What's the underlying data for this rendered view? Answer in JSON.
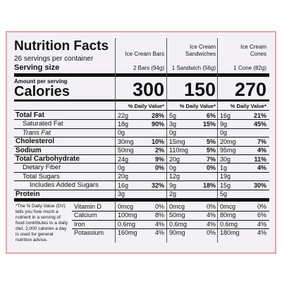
{
  "header": {
    "title": "Nutrition Facts",
    "servings": "26 servings per container",
    "serving_size_label": "Serving size"
  },
  "columns": [
    {
      "name": "Ice Cream Bars",
      "serving_size": "2 Bars (94g)",
      "calories": 300
    },
    {
      "name": "Ice Cream Sandwiches",
      "serving_size": "1 Sandwich (56g)",
      "calories": 150
    },
    {
      "name": "Ice Cream Cones",
      "serving_size": "1 Cone (82g)",
      "calories": 270
    }
  ],
  "amount_per_serving": "Amount per serving",
  "calories_label": "Calories",
  "daily_value_header": "% Daily Value*",
  "nutrients": [
    {
      "label": "Total Fat",
      "bold": true,
      "values": [
        {
          "amount": "22g",
          "dv": "28%"
        },
        {
          "amount": "5g",
          "dv": "6%"
        },
        {
          "amount": "16g",
          "dv": "21%"
        }
      ]
    },
    {
      "label": "Saturated Fat",
      "indent": 1,
      "values": [
        {
          "amount": "18g",
          "dv": "90%"
        },
        {
          "amount": "3g",
          "dv": "15%"
        },
        {
          "amount": "9g",
          "dv": "45%"
        }
      ]
    },
    {
      "label": "Trans Fat",
      "indent": 1,
      "italic": true,
      "values": [
        {
          "amount": "0g"
        },
        {
          "amount": "0g"
        },
        {
          "amount": "0g"
        }
      ]
    },
    {
      "label": "Cholesterol",
      "bold": true,
      "values": [
        {
          "amount": "30mg",
          "dv": "10%"
        },
        {
          "amount": "15mg",
          "dv": "5%"
        },
        {
          "amount": "20mg",
          "dv": "7%"
        }
      ]
    },
    {
      "label": "Sodium",
      "bold": true,
      "values": [
        {
          "amount": "50mg",
          "dv": "2%"
        },
        {
          "amount": "110mg",
          "dv": "5%"
        },
        {
          "amount": "95mg",
          "dv": "4%"
        }
      ]
    },
    {
      "label": "Total Carbohydrate",
      "bold": true,
      "values": [
        {
          "amount": "24g",
          "dv": "9%"
        },
        {
          "amount": "20g",
          "dv": "7%"
        },
        {
          "amount": "30g",
          "dv": "11%"
        }
      ]
    },
    {
      "label": "Dietary Fiber",
      "indent": 1,
      "values": [
        {
          "amount": "0g",
          "dv": "0%"
        },
        {
          "amount": "0g",
          "dv": "0%"
        },
        {
          "amount": "1g",
          "dv": "4%"
        }
      ]
    },
    {
      "label": "Total Sugars",
      "indent": 1,
      "values": [
        {
          "amount": "20g"
        },
        {
          "amount": "12g"
        },
        {
          "amount": "19g"
        }
      ]
    },
    {
      "label": "Includes Added Sugars",
      "indent": 2,
      "values": [
        {
          "amount": "16g",
          "dv": "32%"
        },
        {
          "amount": "9g",
          "dv": "18%"
        },
        {
          "amount": "15g",
          "dv": "30%"
        }
      ]
    },
    {
      "label": "Protein",
      "bold": true,
      "values": [
        {
          "amount": "3g"
        },
        {
          "amount": "2g"
        },
        {
          "amount": "5g"
        }
      ]
    }
  ],
  "footnote": "*The % Daily Value (DV) tells you how much a nutrient in a serving of food contributes to a daily diet. 2,000 calories a day is used for general nutrition advice.",
  "vitamins": [
    {
      "label": "Vitamin D",
      "values": [
        {
          "amount": "0mcg",
          "dv": "0%"
        },
        {
          "amount": "0mcg",
          "dv": "0%"
        },
        {
          "amount": "0mcg",
          "dv": "0%"
        }
      ]
    },
    {
      "label": "Calcium",
      "values": [
        {
          "amount": "100mg",
          "dv": "8%"
        },
        {
          "amount": "50mg",
          "dv": "4%"
        },
        {
          "amount": "80mg",
          "dv": "6%"
        }
      ]
    },
    {
      "label": "Iron",
      "values": [
        {
          "amount": "0.6mg",
          "dv": "4%"
        },
        {
          "amount": "0.6mg",
          "dv": "4%"
        },
        {
          "amount": "0.6mg",
          "dv": "4%"
        }
      ]
    },
    {
      "label": "Potassium",
      "values": [
        {
          "amount": "160mg",
          "dv": "4%"
        },
        {
          "amount": "90mg",
          "dv": "0%"
        },
        {
          "amount": "180mg",
          "dv": "4%"
        }
      ]
    }
  ]
}
